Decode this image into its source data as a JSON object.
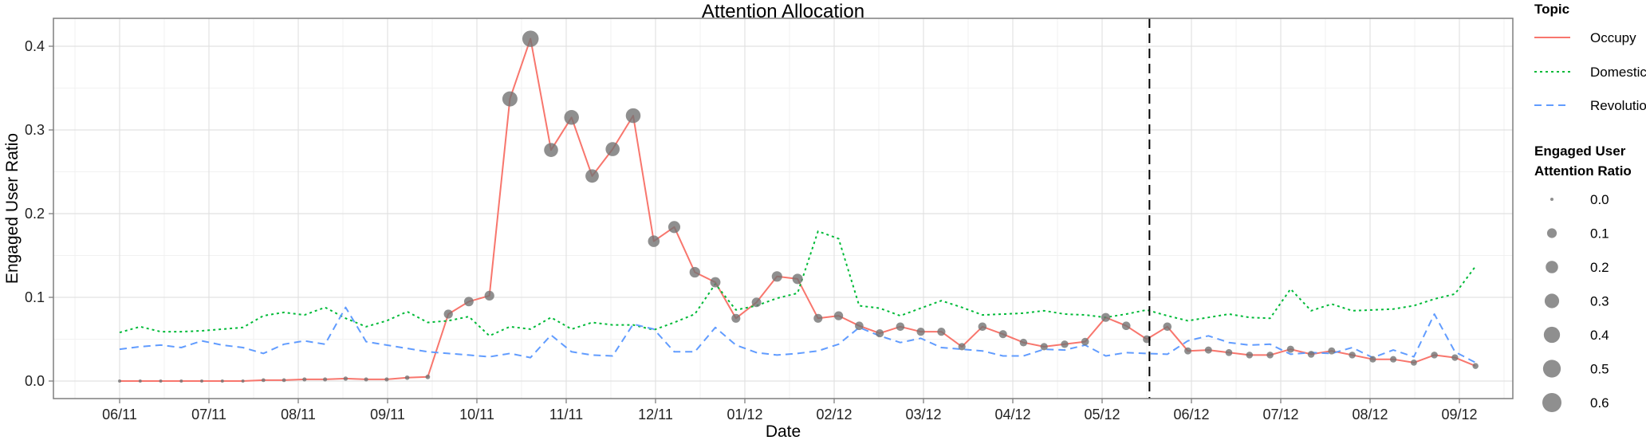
{
  "chart_data": {
    "type": "line",
    "title": "Attention Allocation",
    "xlabel": "Date",
    "ylabel": "Engaged User Ratio",
    "x_ticks": [
      "06/11",
      "07/11",
      "08/11",
      "09/11",
      "10/11",
      "11/11",
      "12/11",
      "01/12",
      "02/12",
      "03/12",
      "04/12",
      "05/12",
      "06/12",
      "07/12",
      "08/12",
      "09/12"
    ],
    "y_ticks": [
      "0.0",
      "0.1",
      "0.2",
      "0.3",
      "0.4"
    ],
    "ylim": [
      -0.02,
      0.42
    ],
    "grid": true,
    "event_line_x": 11.53,
    "series": [
      {
        "name": "Occupy",
        "color": "#f8766d",
        "dash": "solid",
        "show_points": true,
        "points": [
          [
            0.0,
            0.0
          ],
          [
            0.23,
            0.0
          ],
          [
            0.46,
            0.0
          ],
          [
            0.69,
            0.0
          ],
          [
            0.92,
            0.0
          ],
          [
            1.15,
            0.0
          ],
          [
            1.38,
            0.0
          ],
          [
            1.61,
            0.001
          ],
          [
            1.84,
            0.001
          ],
          [
            2.07,
            0.002
          ],
          [
            2.3,
            0.002
          ],
          [
            2.53,
            0.003
          ],
          [
            2.76,
            0.002
          ],
          [
            2.99,
            0.002
          ],
          [
            3.22,
            0.004
          ],
          [
            3.45,
            0.005
          ],
          [
            3.68,
            0.08
          ],
          [
            3.91,
            0.095
          ],
          [
            4.14,
            0.102
          ],
          [
            4.37,
            0.337
          ],
          [
            4.6,
            0.409
          ],
          [
            4.83,
            0.276
          ],
          [
            5.06,
            0.315
          ],
          [
            5.29,
            0.245
          ],
          [
            5.52,
            0.277
          ],
          [
            5.75,
            0.317
          ],
          [
            5.98,
            0.167
          ],
          [
            6.21,
            0.184
          ],
          [
            6.44,
            0.13
          ],
          [
            6.67,
            0.118
          ],
          [
            6.9,
            0.075
          ],
          [
            7.13,
            0.094
          ],
          [
            7.36,
            0.125
          ],
          [
            7.59,
            0.122
          ],
          [
            7.82,
            0.075
          ],
          [
            8.05,
            0.078
          ],
          [
            8.28,
            0.066
          ],
          [
            8.51,
            0.057
          ],
          [
            8.74,
            0.065
          ],
          [
            8.97,
            0.059
          ],
          [
            9.2,
            0.059
          ],
          [
            9.43,
            0.041
          ],
          [
            9.66,
            0.065
          ],
          [
            9.89,
            0.056
          ],
          [
            10.12,
            0.046
          ],
          [
            10.35,
            0.041
          ],
          [
            10.58,
            0.044
          ],
          [
            10.81,
            0.047
          ],
          [
            11.04,
            0.076
          ],
          [
            11.27,
            0.066
          ],
          [
            11.5,
            0.05
          ],
          [
            11.73,
            0.065
          ],
          [
            11.96,
            0.036
          ],
          [
            12.19,
            0.037
          ],
          [
            12.42,
            0.034
          ],
          [
            12.65,
            0.031
          ],
          [
            12.88,
            0.031
          ],
          [
            13.11,
            0.038
          ],
          [
            13.34,
            0.032
          ],
          [
            13.57,
            0.036
          ],
          [
            13.8,
            0.031
          ],
          [
            14.03,
            0.026
          ],
          [
            14.26,
            0.026
          ],
          [
            14.49,
            0.022
          ],
          [
            14.72,
            0.031
          ],
          [
            14.95,
            0.028
          ],
          [
            15.18,
            0.018
          ]
        ]
      },
      {
        "name": "Domestic",
        "color": "#00ba38",
        "dash": "dotted",
        "show_points": false,
        "points": [
          [
            0.0,
            0.058
          ],
          [
            0.23,
            0.065
          ],
          [
            0.46,
            0.059
          ],
          [
            0.69,
            0.059
          ],
          [
            0.92,
            0.06
          ],
          [
            1.15,
            0.062
          ],
          [
            1.38,
            0.064
          ],
          [
            1.61,
            0.078
          ],
          [
            1.84,
            0.082
          ],
          [
            2.07,
            0.079
          ],
          [
            2.3,
            0.088
          ],
          [
            2.53,
            0.075
          ],
          [
            2.76,
            0.065
          ],
          [
            2.99,
            0.072
          ],
          [
            3.22,
            0.083
          ],
          [
            3.45,
            0.07
          ],
          [
            3.68,
            0.072
          ],
          [
            3.91,
            0.077
          ],
          [
            4.14,
            0.054
          ],
          [
            4.37,
            0.065
          ],
          [
            4.6,
            0.062
          ],
          [
            4.83,
            0.076
          ],
          [
            5.06,
            0.062
          ],
          [
            5.29,
            0.07
          ],
          [
            5.52,
            0.067
          ],
          [
            5.75,
            0.067
          ],
          [
            5.98,
            0.061
          ],
          [
            6.21,
            0.07
          ],
          [
            6.44,
            0.08
          ],
          [
            6.67,
            0.116
          ],
          [
            6.9,
            0.085
          ],
          [
            7.13,
            0.09
          ],
          [
            7.36,
            0.099
          ],
          [
            7.59,
            0.105
          ],
          [
            7.82,
            0.179
          ],
          [
            8.05,
            0.17
          ],
          [
            8.28,
            0.09
          ],
          [
            8.51,
            0.087
          ],
          [
            8.74,
            0.078
          ],
          [
            8.97,
            0.087
          ],
          [
            9.2,
            0.096
          ],
          [
            9.43,
            0.088
          ],
          [
            9.66,
            0.079
          ],
          [
            9.89,
            0.08
          ],
          [
            10.12,
            0.081
          ],
          [
            10.35,
            0.084
          ],
          [
            10.58,
            0.08
          ],
          [
            10.81,
            0.079
          ],
          [
            11.04,
            0.076
          ],
          [
            11.27,
            0.08
          ],
          [
            11.5,
            0.085
          ],
          [
            11.73,
            0.078
          ],
          [
            11.96,
            0.072
          ],
          [
            12.19,
            0.076
          ],
          [
            12.42,
            0.08
          ],
          [
            12.65,
            0.076
          ],
          [
            12.88,
            0.075
          ],
          [
            13.11,
            0.11
          ],
          [
            13.34,
            0.084
          ],
          [
            13.57,
            0.092
          ],
          [
            13.8,
            0.084
          ],
          [
            14.03,
            0.085
          ],
          [
            14.26,
            0.086
          ],
          [
            14.49,
            0.09
          ],
          [
            14.72,
            0.098
          ],
          [
            14.95,
            0.104
          ],
          [
            15.18,
            0.137
          ]
        ]
      },
      {
        "name": "Revolution",
        "color": "#619cff",
        "dash": "dashed",
        "show_points": false,
        "points": [
          [
            0.0,
            0.038
          ],
          [
            0.23,
            0.041
          ],
          [
            0.46,
            0.043
          ],
          [
            0.69,
            0.04
          ],
          [
            0.92,
            0.048
          ],
          [
            1.15,
            0.043
          ],
          [
            1.38,
            0.04
          ],
          [
            1.61,
            0.033
          ],
          [
            1.84,
            0.044
          ],
          [
            2.07,
            0.048
          ],
          [
            2.3,
            0.044
          ],
          [
            2.53,
            0.088
          ],
          [
            2.76,
            0.047
          ],
          [
            2.99,
            0.043
          ],
          [
            3.22,
            0.039
          ],
          [
            3.45,
            0.035
          ],
          [
            3.68,
            0.033
          ],
          [
            3.91,
            0.031
          ],
          [
            4.14,
            0.029
          ],
          [
            4.37,
            0.033
          ],
          [
            4.6,
            0.028
          ],
          [
            4.83,
            0.055
          ],
          [
            5.06,
            0.035
          ],
          [
            5.29,
            0.031
          ],
          [
            5.52,
            0.03
          ],
          [
            5.75,
            0.068
          ],
          [
            5.98,
            0.062
          ],
          [
            6.21,
            0.035
          ],
          [
            6.44,
            0.035
          ],
          [
            6.67,
            0.064
          ],
          [
            6.9,
            0.043
          ],
          [
            7.13,
            0.034
          ],
          [
            7.36,
            0.031
          ],
          [
            7.59,
            0.033
          ],
          [
            7.82,
            0.036
          ],
          [
            8.05,
            0.044
          ],
          [
            8.28,
            0.064
          ],
          [
            8.51,
            0.054
          ],
          [
            8.74,
            0.046
          ],
          [
            8.97,
            0.051
          ],
          [
            9.2,
            0.04
          ],
          [
            9.43,
            0.038
          ],
          [
            9.66,
            0.036
          ],
          [
            9.89,
            0.03
          ],
          [
            10.12,
            0.03
          ],
          [
            10.35,
            0.038
          ],
          [
            10.58,
            0.037
          ],
          [
            10.81,
            0.043
          ],
          [
            11.04,
            0.03
          ],
          [
            11.27,
            0.034
          ],
          [
            11.5,
            0.033
          ],
          [
            11.73,
            0.032
          ],
          [
            11.96,
            0.048
          ],
          [
            12.19,
            0.054
          ],
          [
            12.42,
            0.046
          ],
          [
            12.65,
            0.043
          ],
          [
            12.88,
            0.044
          ],
          [
            13.11,
            0.032
          ],
          [
            13.34,
            0.034
          ],
          [
            13.57,
            0.033
          ],
          [
            13.8,
            0.04
          ],
          [
            14.03,
            0.028
          ],
          [
            14.26,
            0.037
          ],
          [
            14.49,
            0.029
          ],
          [
            14.72,
            0.08
          ],
          [
            14.95,
            0.035
          ],
          [
            15.18,
            0.022
          ]
        ]
      }
    ],
    "legend": {
      "placement": "right",
      "topic_title": "Topic",
      "size_title_line1": "Engaged User",
      "size_title_line2": "Attention Ratio",
      "size_values": [
        0.0,
        0.1,
        0.2,
        0.3,
        0.4,
        0.5,
        0.6
      ],
      "size_labels": [
        "0.0",
        "0.1",
        "0.2",
        "0.3",
        "0.4",
        "0.5",
        "0.6"
      ]
    }
  }
}
